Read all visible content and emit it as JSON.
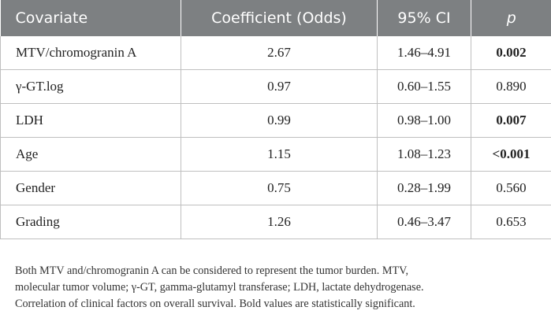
{
  "table": {
    "headers": [
      "Covariate",
      "Coefficient (Odds)",
      "95% CI",
      "p"
    ],
    "rows": [
      {
        "covariate": "MTV/chromogranin A",
        "coefficient": "2.67",
        "ci": "1.46–4.91",
        "p": "0.002",
        "p_bold": true
      },
      {
        "covariate": "γ-GT.log",
        "coefficient": "0.97",
        "ci": "0.60–1.55",
        "p": "0.890",
        "p_bold": false
      },
      {
        "covariate": "LDH",
        "coefficient": "0.99",
        "ci": "0.98–1.00",
        "p": "0.007",
        "p_bold": true
      },
      {
        "covariate": "Age",
        "coefficient": "1.15",
        "ci": "1.08–1.23",
        "p": "<0.001",
        "p_bold": true
      },
      {
        "covariate": "Gender",
        "coefficient": "0.75",
        "ci": "0.28–1.99",
        "p": "0.560",
        "p_bold": false
      },
      {
        "covariate": "Grading",
        "coefficient": "1.26",
        "ci": "0.46–3.47",
        "p": "0.653",
        "p_bold": false
      }
    ]
  },
  "footnote": {
    "lines": [
      "Both MTV and/chromogranin A can be considered to represent the tumor burden. MTV,",
      "molecular tumor volume; γ-GT, gamma-glutamyl transferase; LDH, lactate dehydrogenase.",
      "Correlation of clinical factors on overall survival. Bold values are statistically significant."
    ]
  },
  "colors": {
    "header_bg": "#7d8082",
    "header_text": "#ffffff",
    "grid": "#bfbfbf"
  }
}
